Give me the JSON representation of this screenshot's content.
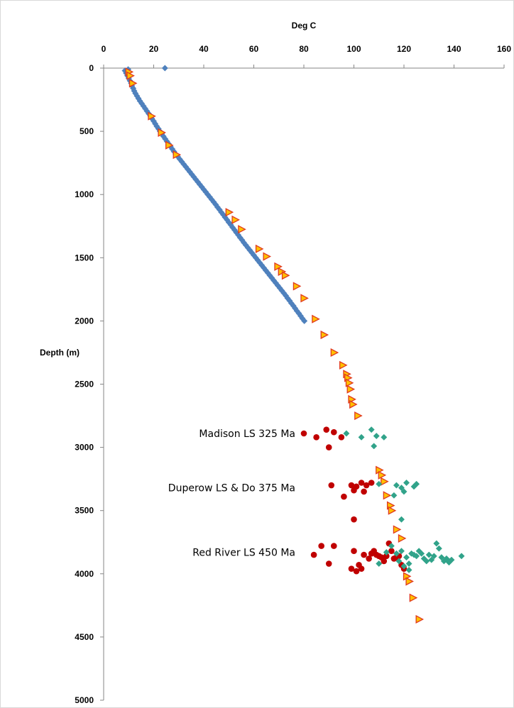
{
  "chart_data": {
    "type": "scatter",
    "title": "",
    "xlabel": "Deg C",
    "ylabel": "Depth (m)",
    "x_axis_position": "top",
    "y_axis_reversed": true,
    "xlim": [
      0,
      160
    ],
    "ylim": [
      0,
      5000
    ],
    "xticks": [
      0,
      20,
      40,
      60,
      80,
      100,
      120,
      140,
      160
    ],
    "yticks": [
      0,
      500,
      1000,
      1500,
      2000,
      2500,
      3000,
      3500,
      4000,
      4500,
      5000
    ],
    "grid": false,
    "legend": "none",
    "annotations": [
      {
        "text": "Madison LS 325 Ma",
        "depth": 2890
      },
      {
        "text": "Duperow LS & Do 375 Ma",
        "depth": 3320
      },
      {
        "text": "Red River LS 450 Ma",
        "depth": 3830
      }
    ],
    "series": [
      {
        "marker": "diamond",
        "color": "#4f81bd",
        "points": [
          [
            8.5,
            20
          ],
          [
            9.0,
            40
          ],
          [
            9.5,
            60
          ],
          [
            10.0,
            80
          ],
          [
            10.5,
            100
          ],
          [
            11.0,
            120
          ],
          [
            11.3,
            140
          ],
          [
            11.8,
            160
          ],
          [
            12.2,
            180
          ],
          [
            12.7,
            200
          ],
          [
            13.3,
            220
          ],
          [
            13.9,
            240
          ],
          [
            14.5,
            260
          ],
          [
            15.2,
            280
          ],
          [
            15.9,
            300
          ],
          [
            16.6,
            320
          ],
          [
            17.3,
            340
          ],
          [
            18.0,
            360
          ],
          [
            18.7,
            380
          ],
          [
            19.3,
            400
          ],
          [
            20.0,
            420
          ],
          [
            20.6,
            440
          ],
          [
            21.2,
            460
          ],
          [
            21.9,
            480
          ],
          [
            22.5,
            500
          ],
          [
            23.2,
            520
          ],
          [
            23.9,
            540
          ],
          [
            24.6,
            560
          ],
          [
            25.3,
            580
          ],
          [
            26.0,
            600
          ],
          [
            26.7,
            620
          ],
          [
            27.4,
            640
          ],
          [
            28.1,
            660
          ],
          [
            28.8,
            680
          ],
          [
            29.6,
            700
          ],
          [
            30.4,
            720
          ],
          [
            31.2,
            740
          ],
          [
            32.0,
            760
          ],
          [
            32.8,
            780
          ],
          [
            33.6,
            800
          ],
          [
            34.4,
            820
          ],
          [
            35.2,
            840
          ],
          [
            36.0,
            860
          ],
          [
            36.8,
            880
          ],
          [
            37.6,
            900
          ],
          [
            38.4,
            920
          ],
          [
            39.2,
            940
          ],
          [
            40.0,
            960
          ],
          [
            40.8,
            980
          ],
          [
            41.6,
            1000
          ],
          [
            42.4,
            1020
          ],
          [
            43.2,
            1040
          ],
          [
            44.0,
            1060
          ],
          [
            44.8,
            1080
          ],
          [
            45.5,
            1100
          ],
          [
            46.3,
            1120
          ],
          [
            47.0,
            1140
          ],
          [
            47.8,
            1160
          ],
          [
            48.5,
            1180
          ],
          [
            49.3,
            1200
          ],
          [
            50.0,
            1220
          ],
          [
            50.8,
            1240
          ],
          [
            51.5,
            1260
          ],
          [
            52.3,
            1280
          ],
          [
            53.0,
            1300
          ],
          [
            53.8,
            1320
          ],
          [
            54.5,
            1340
          ],
          [
            55.3,
            1360
          ],
          [
            56.0,
            1380
          ],
          [
            56.8,
            1400
          ],
          [
            57.6,
            1420
          ],
          [
            58.4,
            1440
          ],
          [
            59.2,
            1460
          ],
          [
            60.0,
            1480
          ],
          [
            60.8,
            1500
          ],
          [
            61.6,
            1520
          ],
          [
            62.4,
            1540
          ],
          [
            63.2,
            1560
          ],
          [
            64.0,
            1580
          ],
          [
            64.8,
            1600
          ],
          [
            65.6,
            1620
          ],
          [
            66.4,
            1640
          ],
          [
            67.2,
            1660
          ],
          [
            68.0,
            1680
          ],
          [
            68.8,
            1700
          ],
          [
            69.6,
            1720
          ],
          [
            70.4,
            1740
          ],
          [
            71.2,
            1760
          ],
          [
            72.0,
            1780
          ],
          [
            72.8,
            1800
          ],
          [
            73.5,
            1820
          ],
          [
            74.3,
            1840
          ],
          [
            75.0,
            1860
          ],
          [
            75.8,
            1880
          ],
          [
            76.5,
            1900
          ],
          [
            77.2,
            1920
          ],
          [
            78.0,
            1940
          ],
          [
            78.7,
            1960
          ],
          [
            79.4,
            1980
          ],
          [
            80.2,
            2000
          ],
          [
            24.5,
            0
          ],
          [
            9.8,
            10
          ]
        ]
      },
      {
        "marker": "triangle-right",
        "color": "#ffc000",
        "points": [
          [
            10.0,
            30
          ],
          [
            10.5,
            60
          ],
          [
            11.5,
            120
          ],
          [
            19.0,
            380
          ],
          [
            23.0,
            510
          ],
          [
            26.0,
            610
          ],
          [
            29.0,
            685
          ],
          [
            50.0,
            1140
          ],
          [
            52.5,
            1200
          ],
          [
            55.0,
            1275
          ],
          [
            62.0,
            1430
          ],
          [
            65.0,
            1490
          ],
          [
            69.5,
            1570
          ],
          [
            71.0,
            1610
          ],
          [
            72.5,
            1640
          ],
          [
            77.0,
            1725
          ],
          [
            80.0,
            1820
          ],
          [
            84.5,
            1985
          ],
          [
            88.0,
            2110
          ],
          [
            92.0,
            2250
          ],
          [
            95.5,
            2350
          ],
          [
            97.0,
            2420
          ],
          [
            97.5,
            2450
          ],
          [
            98.0,
            2490
          ],
          [
            98.5,
            2540
          ],
          [
            99.0,
            2620
          ],
          [
            99.5,
            2660
          ],
          [
            101.5,
            2750
          ],
          [
            110.0,
            3180
          ],
          [
            111.0,
            3220
          ],
          [
            112.0,
            3270
          ],
          [
            113.0,
            3380
          ],
          [
            114.5,
            3460
          ],
          [
            115.0,
            3500
          ],
          [
            117.0,
            3650
          ],
          [
            119.0,
            3720
          ],
          [
            121.0,
            4020
          ],
          [
            122.0,
            4060
          ],
          [
            123.5,
            4190
          ],
          [
            126.0,
            4360
          ]
        ]
      },
      {
        "marker": "circle",
        "color": "#c00000",
        "points": [
          [
            80,
            2890
          ],
          [
            85,
            2920
          ],
          [
            89,
            2860
          ],
          [
            90,
            3000
          ],
          [
            92,
            2880
          ],
          [
            95,
            2920
          ],
          [
            91,
            3300
          ],
          [
            96,
            3390
          ],
          [
            99,
            3300
          ],
          [
            100,
            3340
          ],
          [
            101,
            3310
          ],
          [
            103,
            3280
          ],
          [
            104,
            3350
          ],
          [
            105,
            3300
          ],
          [
            107,
            3280
          ],
          [
            100,
            3570
          ],
          [
            84,
            3850
          ],
          [
            87,
            3780
          ],
          [
            90,
            3920
          ],
          [
            92,
            3780
          ],
          [
            99,
            3960
          ],
          [
            100,
            3820
          ],
          [
            101,
            3980
          ],
          [
            102,
            3930
          ],
          [
            103,
            3960
          ],
          [
            104,
            3850
          ],
          [
            106,
            3880
          ],
          [
            107,
            3840
          ],
          [
            108,
            3820
          ],
          [
            109,
            3850
          ],
          [
            110,
            3860
          ],
          [
            111,
            3870
          ],
          [
            112,
            3900
          ],
          [
            113,
            3860
          ],
          [
            114,
            3760
          ],
          [
            115,
            3820
          ],
          [
            116,
            3880
          ],
          [
            117,
            3870
          ],
          [
            118,
            3860
          ],
          [
            119,
            3930
          ],
          [
            120,
            3960
          ]
        ]
      },
      {
        "marker": "diamond",
        "color": "#31a38a",
        "points": [
          [
            97,
            2890
          ],
          [
            103,
            2920
          ],
          [
            107,
            2860
          ],
          [
            108,
            2990
          ],
          [
            109,
            2910
          ],
          [
            112,
            2920
          ],
          [
            110,
            3290
          ],
          [
            117,
            3300
          ],
          [
            119,
            3320
          ],
          [
            120,
            3350
          ],
          [
            121,
            3280
          ],
          [
            124,
            3310
          ],
          [
            125,
            3290
          ],
          [
            116,
            3380
          ],
          [
            119,
            3570
          ],
          [
            110,
            3920
          ],
          [
            113,
            3830
          ],
          [
            115,
            3780
          ],
          [
            117,
            3840
          ],
          [
            118,
            3900
          ],
          [
            119,
            3820
          ],
          [
            120,
            3940
          ],
          [
            121,
            3870
          ],
          [
            122,
            3920
          ],
          [
            123,
            3840
          ],
          [
            124,
            3850
          ],
          [
            125,
            3860
          ],
          [
            126,
            3820
          ],
          [
            127,
            3840
          ],
          [
            128,
            3880
          ],
          [
            129,
            3900
          ],
          [
            130,
            3850
          ],
          [
            131,
            3890
          ],
          [
            132,
            3860
          ],
          [
            133,
            3760
          ],
          [
            134,
            3800
          ],
          [
            135,
            3870
          ],
          [
            136,
            3900
          ],
          [
            137,
            3880
          ],
          [
            138,
            3910
          ],
          [
            139,
            3890
          ],
          [
            143,
            3860
          ],
          [
            122,
            3970
          ]
        ]
      }
    ]
  }
}
